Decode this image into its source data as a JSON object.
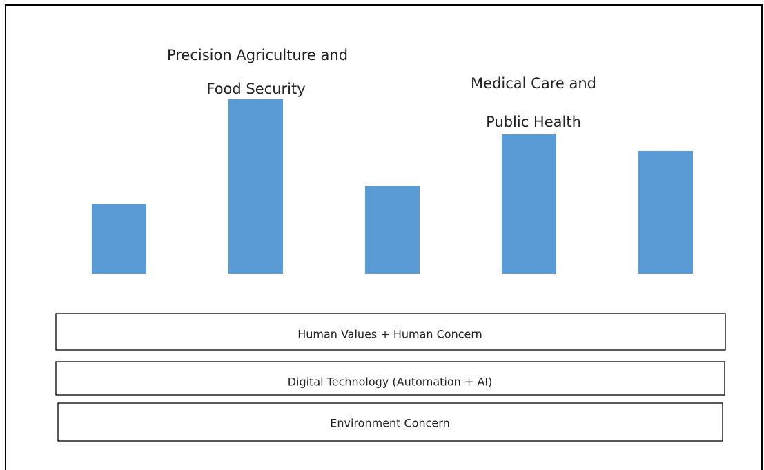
{
  "pillar_labels": [
    {
      "lines": [
        "Precision Agriculture and",
        "Food Security"
      ]
    },
    {
      "lines": [
        "Medical Care and",
        "Public Health"
      ]
    }
  ],
  "layers": [
    "Human Values + Human Concern",
    "Digital Technology (Automation + AI)",
    "Environment Concern"
  ]
}
